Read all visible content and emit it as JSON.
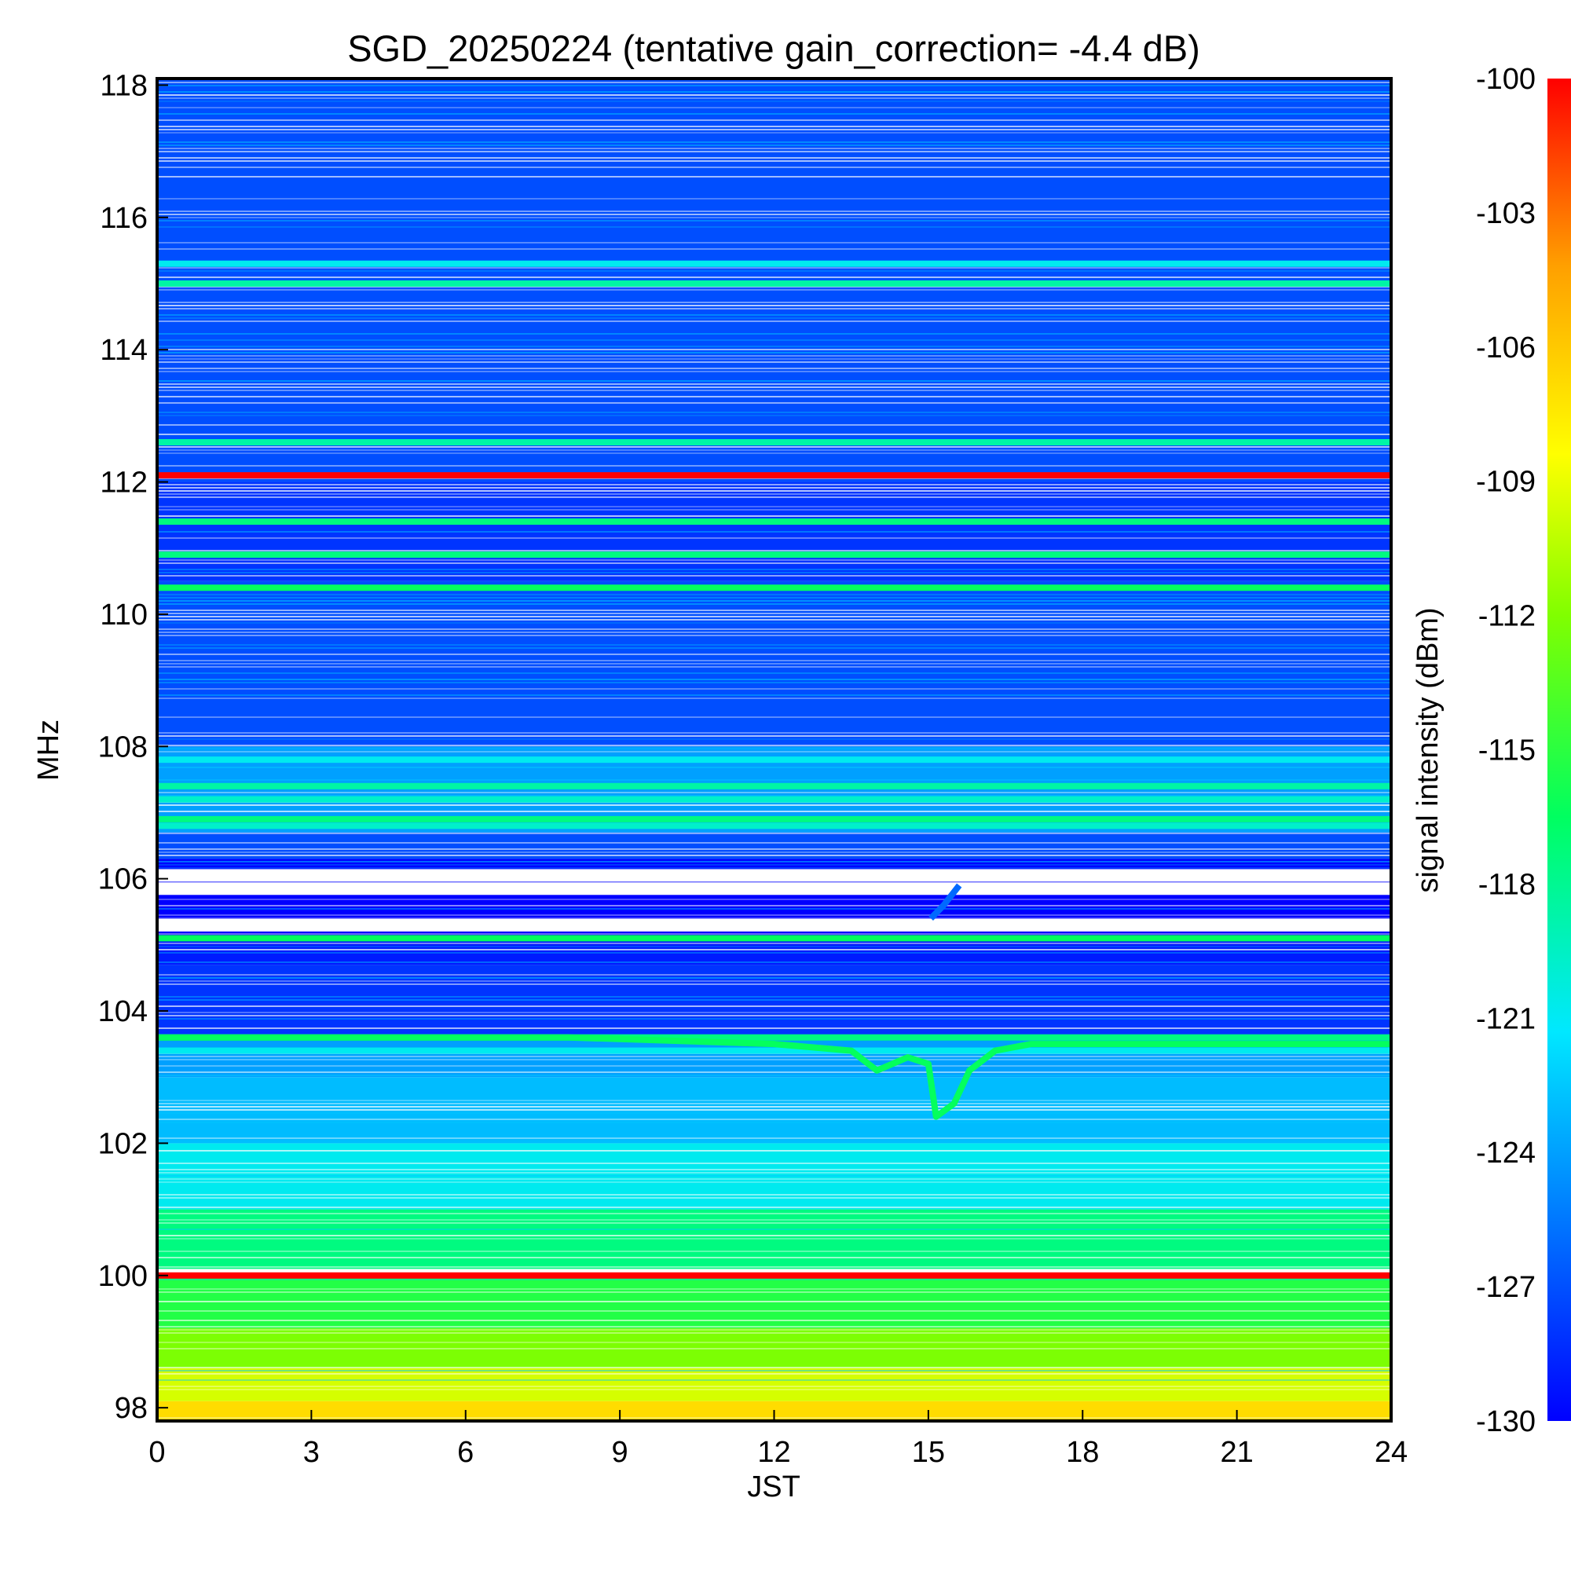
{
  "chart_data": {
    "type": "heatmap",
    "title": "SGD_20250224 (tentative gain_correction= -4.4 dB)",
    "xlabel": "JST",
    "ylabel": "MHz",
    "colorbar_label": "signal intensity (dBm)",
    "xlim": [
      0,
      24
    ],
    "ylim": [
      97.8,
      118.1
    ],
    "clim": [
      -130,
      -100
    ],
    "x_ticks": [
      0,
      3,
      6,
      9,
      12,
      15,
      18,
      21,
      24
    ],
    "y_ticks": [
      98,
      100,
      102,
      104,
      106,
      108,
      110,
      112,
      114,
      116,
      118
    ],
    "colorbar_ticks": [
      -100,
      -103,
      -106,
      -109,
      -112,
      -115,
      -118,
      -121,
      -124,
      -127,
      -130
    ],
    "colormap": [
      "#0000ff",
      "#0070ff",
      "#00e8ff",
      "#00ff60",
      "#80ff00",
      "#ffff00",
      "#ffa000",
      "#ff0000"
    ],
    "background_bands": [
      {
        "f_low": 97.8,
        "f_high": 98.1,
        "dBm": -107
      },
      {
        "f_low": 98.1,
        "f_high": 98.6,
        "dBm": -110
      },
      {
        "f_low": 98.6,
        "f_high": 99.2,
        "dBm": -113
      },
      {
        "f_low": 99.2,
        "f_high": 100.0,
        "dBm": -116
      },
      {
        "f_low": 100.1,
        "f_high": 101.0,
        "dBm": -118
      },
      {
        "f_low": 101.0,
        "f_high": 102.0,
        "dBm": -121
      },
      {
        "f_low": 102.0,
        "f_high": 103.0,
        "dBm": -123
      },
      {
        "f_low": 103.0,
        "f_high": 103.6,
        "dBm": -124
      },
      {
        "f_low": 103.6,
        "f_high": 104.7,
        "dBm": -128
      },
      {
        "f_low": 104.7,
        "f_high": 105.1,
        "dBm": -129
      },
      {
        "f_low": 105.1,
        "f_high": 106.3,
        "dBm": -130
      },
      {
        "f_low": 106.3,
        "f_high": 106.7,
        "dBm": -127
      },
      {
        "f_low": 106.7,
        "f_high": 108.0,
        "dBm": -124
      },
      {
        "f_low": 108.0,
        "f_high": 110.5,
        "dBm": -127
      },
      {
        "f_low": 110.5,
        "f_high": 112.0,
        "dBm": -128
      },
      {
        "f_low": 112.0,
        "f_high": 118.1,
        "dBm": -127
      }
    ],
    "constant_lines": [
      {
        "freq": 100.0,
        "dBm": -100
      },
      {
        "freq": 112.1,
        "dBm": -100
      },
      {
        "freq": 105.1,
        "dBm": -117
      },
      {
        "freq": 110.4,
        "dBm": -117
      },
      {
        "freq": 110.9,
        "dBm": -118
      },
      {
        "freq": 111.4,
        "dBm": -118
      },
      {
        "freq": 112.6,
        "dBm": -119
      },
      {
        "freq": 115.0,
        "dBm": -119
      },
      {
        "freq": 115.3,
        "dBm": -121
      },
      {
        "freq": 107.8,
        "dBm": -121
      },
      {
        "freq": 107.4,
        "dBm": -119
      },
      {
        "freq": 107.2,
        "dBm": -120
      },
      {
        "freq": 106.9,
        "dBm": -118
      },
      {
        "freq": 106.8,
        "dBm": -120
      },
      {
        "freq": 103.6,
        "dBm": -118
      },
      {
        "freq": 103.4,
        "dBm": -121
      }
    ],
    "drifting_signal": {
      "dBm": -117,
      "points": [
        [
          0,
          103.6
        ],
        [
          8,
          103.6
        ],
        [
          12,
          103.5
        ],
        [
          13.5,
          103.4
        ],
        [
          14,
          103.1
        ],
        [
          14.6,
          103.3
        ],
        [
          15.0,
          103.2
        ],
        [
          15.15,
          102.4
        ],
        [
          15.5,
          102.6
        ],
        [
          15.8,
          103.1
        ],
        [
          16.3,
          103.4
        ],
        [
          17,
          103.5
        ],
        [
          24,
          103.5
        ]
      ]
    },
    "drifting_signal_upper": {
      "dBm": -126,
      "points": [
        [
          15.05,
          105.4
        ],
        [
          15.3,
          105.6
        ],
        [
          15.6,
          105.9
        ]
      ]
    }
  }
}
